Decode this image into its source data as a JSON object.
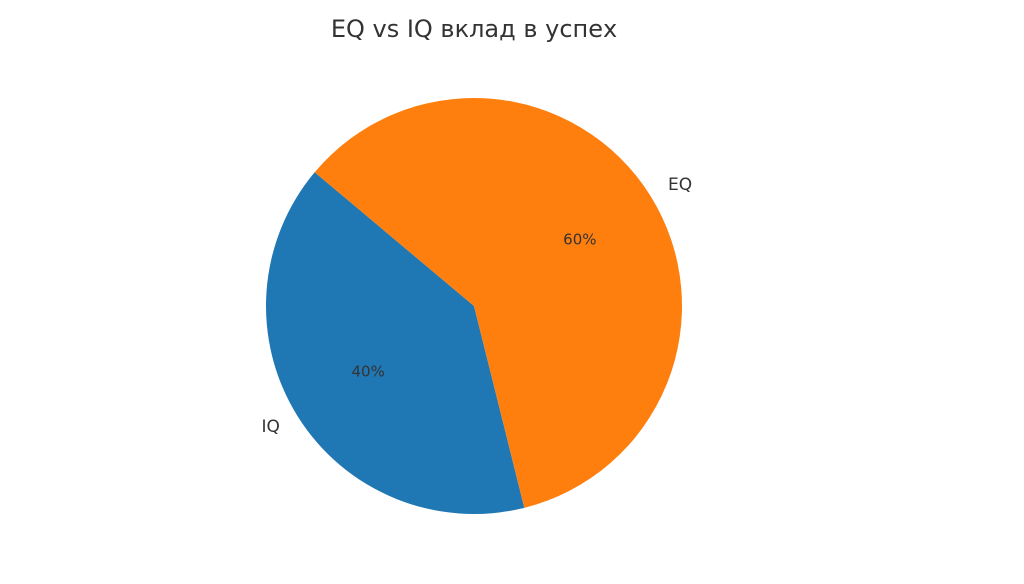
{
  "chart_data": {
    "type": "pie",
    "title": "EQ vs IQ вклад в успех",
    "categories": [
      "IQ",
      "EQ"
    ],
    "values": [
      40,
      60
    ],
    "value_labels": [
      "40%",
      "60%"
    ],
    "colors": [
      "#1f77b4",
      "#ff7f0e"
    ],
    "start_angle_deg": 140,
    "direction": "counterclockwise",
    "legend": "none"
  }
}
